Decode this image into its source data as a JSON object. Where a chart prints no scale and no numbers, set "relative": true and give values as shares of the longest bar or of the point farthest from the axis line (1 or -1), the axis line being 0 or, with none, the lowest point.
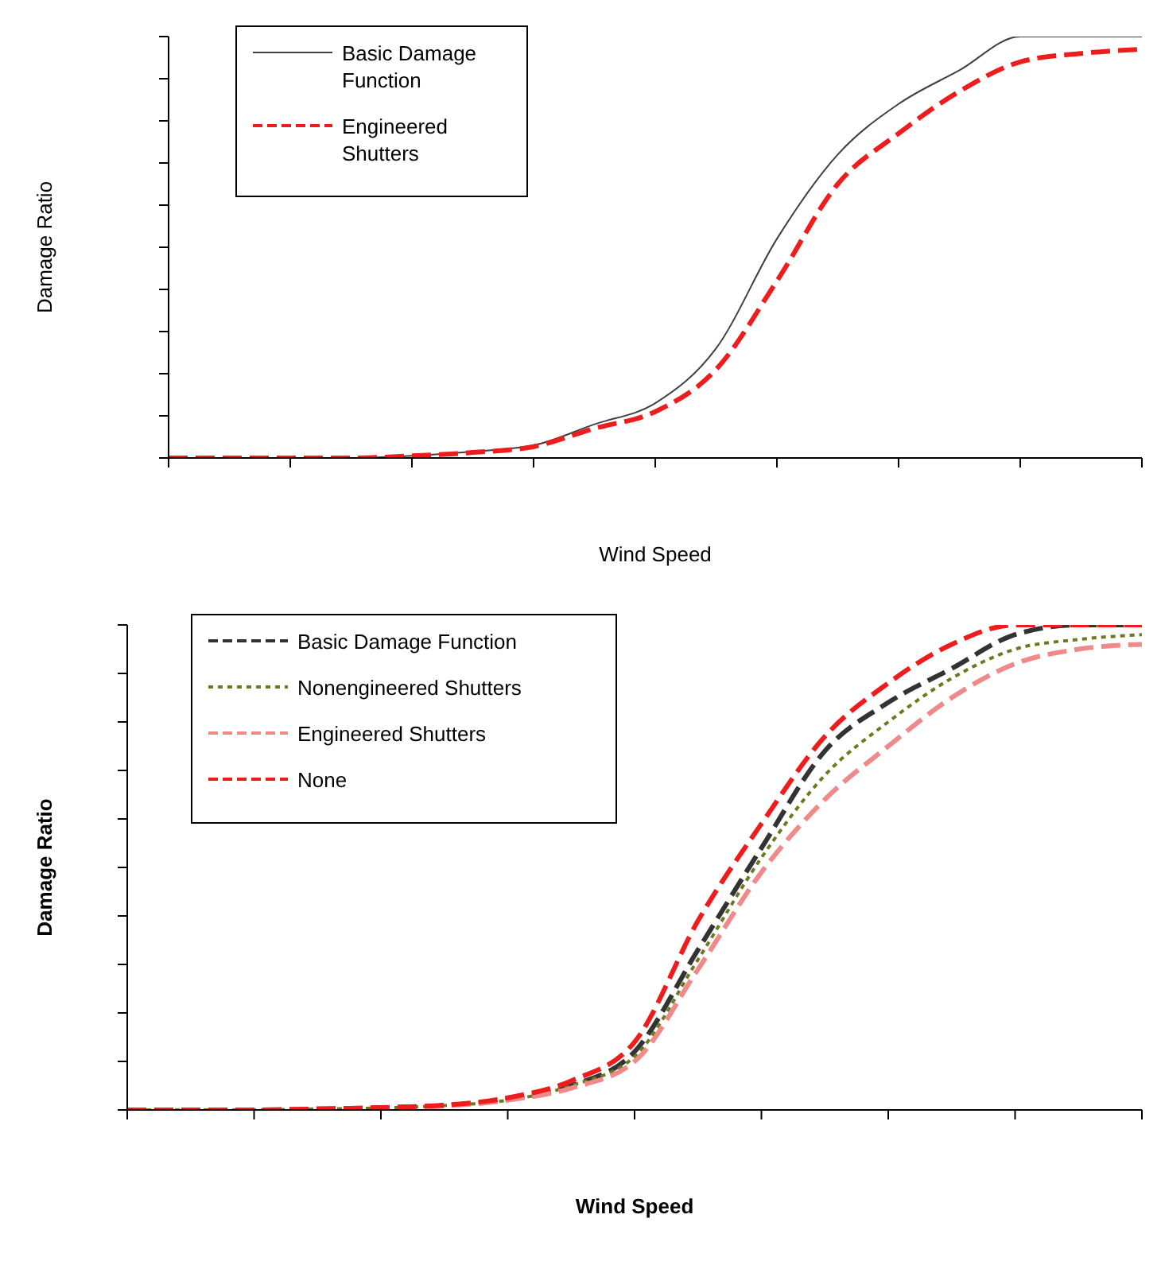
{
  "chart_data": [
    {
      "type": "line",
      "relative": true,
      "xlabel": "Wind Speed",
      "ylabel": "Damage Ratio",
      "legend": "top left",
      "tick_labels": false,
      "marker": "none",
      "categories": [
        null,
        null,
        null,
        null,
        null,
        null,
        null,
        null,
        null,
        null,
        null,
        null,
        null,
        null,
        null,
        null,
        null
      ],
      "series": [
        {
          "name": "Basic Damage Function",
          "color": "#404040",
          "line_style": "solid",
          "values": [
            0,
            0,
            0,
            0,
            0.005,
            0.015,
            0.03,
            0.08,
            0.13,
            0.26,
            0.52,
            0.72,
            0.84,
            0.92,
            1.0,
            1.0,
            1.0
          ]
        },
        {
          "name": "Engineered Shutters",
          "color": "#ee1c1c",
          "line_style": "dashed",
          "values": [
            0,
            0,
            0,
            0,
            0.005,
            0.013,
            0.027,
            0.07,
            0.11,
            0.21,
            0.42,
            0.65,
            0.77,
            0.87,
            0.94,
            0.96,
            0.97
          ]
        }
      ]
    },
    {
      "type": "line",
      "relative": true,
      "xlabel": "Wind Speed",
      "ylabel": "Damage Ratio",
      "legend": "top left",
      "tick_labels": false,
      "marker": "none",
      "categories": [
        null,
        null,
        null,
        null,
        null,
        null,
        null,
        null,
        null,
        null,
        null,
        null,
        null,
        null,
        null,
        null,
        null
      ],
      "series": [
        {
          "name": "Basic Damage Function",
          "color": "#333333",
          "line_style": "dashed",
          "values": [
            0,
            0,
            0,
            0.002,
            0.004,
            0.009,
            0.022,
            0.05,
            0.12,
            0.33,
            0.54,
            0.74,
            0.84,
            0.91,
            0.98,
            1.0,
            1.0
          ]
        },
        {
          "name": "Nonengineered Shutters",
          "color": "#6b7a1e",
          "line_style": "dotted",
          "values": [
            0,
            0,
            0,
            0.002,
            0.004,
            0.009,
            0.02,
            0.05,
            0.11,
            0.31,
            0.52,
            0.69,
            0.8,
            0.89,
            0.95,
            0.97,
            0.98
          ]
        },
        {
          "name": "Engineered Shutters",
          "color": "#f08a8a",
          "line_style": "dashed",
          "values": [
            0,
            0,
            0,
            0.002,
            0.004,
            0.008,
            0.02,
            0.045,
            0.1,
            0.29,
            0.49,
            0.64,
            0.75,
            0.85,
            0.92,
            0.95,
            0.96
          ]
        },
        {
          "name": "None",
          "color": "#ee1c1c",
          "line_style": "dashed",
          "values": [
            0,
            0,
            0,
            0.002,
            0.005,
            0.01,
            0.025,
            0.06,
            0.14,
            0.39,
            0.59,
            0.77,
            0.88,
            0.96,
            1.0,
            1.0,
            1.0
          ]
        }
      ]
    }
  ]
}
